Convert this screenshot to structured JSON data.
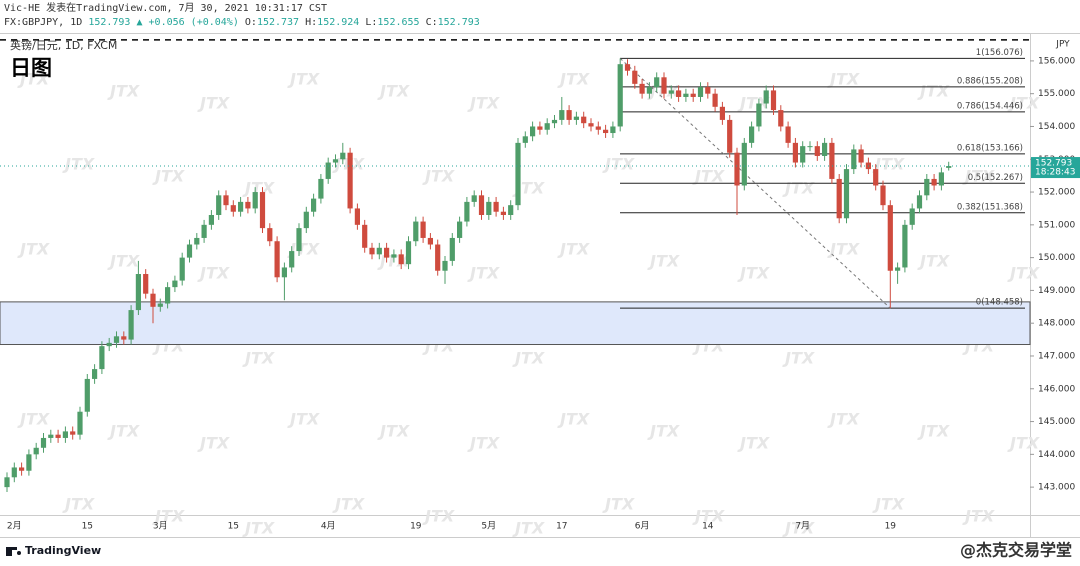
{
  "header": {
    "published": "Vic-HE 发表在TradingView.com, 7月 30, 2021 10:31:17 CST",
    "symbol": "FX:GBPJPY, 1D",
    "change": "▲ +0.056 (+0.04%)",
    "ohlc_keys": [
      "O:",
      "H:",
      "L:",
      "C:"
    ]
  },
  "footer": {
    "brand": "TradingView",
    "watermark_account": "@杰克交易学堂"
  },
  "chart_data": {
    "type": "candlestick",
    "title": "英镑/日元, 1D, FXCM",
    "subtitle": "日图",
    "currency": "JPY",
    "countdown": "18:28:43",
    "watermark": "JTX",
    "up_color": "#4f9d69",
    "down_color": "#cf4b3e",
    "categories": [
      null,
      "2月",
      null,
      null,
      null,
      null,
      null,
      null,
      null,
      null,
      null,
      "15",
      null,
      null,
      null,
      null,
      null,
      null,
      null,
      null,
      null,
      "3月",
      null,
      null,
      null,
      null,
      null,
      null,
      null,
      null,
      null,
      "15",
      null,
      null,
      null,
      null,
      null,
      null,
      null,
      null,
      null,
      null,
      null,
      null,
      "4月",
      null,
      null,
      null,
      null,
      null,
      null,
      null,
      null,
      null,
      null,
      null,
      "19",
      null,
      null,
      null,
      null,
      null,
      null,
      null,
      null,
      null,
      "5月",
      null,
      null,
      null,
      null,
      null,
      null,
      null,
      null,
      null,
      "17",
      null,
      null,
      null,
      null,
      null,
      null,
      null,
      null,
      null,
      null,
      "6月",
      null,
      null,
      null,
      null,
      null,
      null,
      null,
      null,
      "14",
      null,
      null,
      null,
      null,
      null,
      null,
      null,
      null,
      null,
      null,
      null,
      null,
      "7月",
      null,
      null,
      null,
      null,
      null,
      null,
      null,
      null,
      null,
      null,
      null,
      "19",
      null,
      null,
      null,
      null,
      null,
      null,
      null,
      null
    ],
    "open": [
      143.0,
      143.3,
      143.6,
      143.5,
      144.0,
      144.2,
      144.5,
      144.6,
      144.5,
      144.7,
      144.6,
      145.3,
      146.3,
      146.6,
      147.3,
      147.4,
      147.6,
      147.5,
      148.4,
      149.5,
      148.9,
      148.5,
      148.6,
      149.1,
      149.3,
      150.0,
      150.4,
      150.6,
      151.0,
      151.3,
      151.9,
      151.6,
      151.4,
      151.7,
      151.5,
      152.0,
      150.9,
      150.5,
      149.4,
      149.7,
      150.2,
      150.9,
      151.4,
      151.8,
      152.4,
      152.9,
      153.0,
      153.2,
      151.5,
      151.0,
      150.3,
      150.1,
      150.3,
      150.0,
      150.1,
      149.8,
      150.5,
      151.1,
      150.6,
      150.4,
      149.6,
      149.9,
      150.6,
      151.1,
      151.7,
      151.9,
      151.3,
      151.7,
      151.4,
      151.3,
      151.6,
      153.5,
      153.7,
      154.0,
      153.9,
      154.1,
      154.2,
      154.5,
      154.2,
      154.3,
      154.1,
      154.0,
      153.9,
      153.8,
      154.0,
      155.9,
      155.7,
      155.3,
      155.0,
      155.2,
      155.5,
      155.0,
      155.1,
      154.9,
      155.0,
      154.9,
      155.2,
      155.0,
      154.6,
      154.2,
      153.2,
      152.2,
      153.5,
      154.0,
      154.7,
      155.1,
      154.5,
      154.0,
      153.5,
      152.9,
      153.4,
      153.4,
      153.1,
      153.5,
      152.4,
      151.2,
      152.7,
      153.3,
      152.9,
      152.7,
      152.2,
      151.6,
      149.6,
      149.7,
      151.0,
      151.5,
      151.9,
      152.4,
      152.2,
      152.737
    ],
    "high": [
      143.45,
      143.75,
      143.75,
      144.15,
      144.35,
      144.65,
      144.75,
      144.75,
      144.85,
      144.85,
      145.45,
      146.45,
      146.75,
      147.45,
      147.55,
      147.75,
      147.75,
      148.55,
      149.9,
      149.65,
      149.05,
      148.75,
      149.25,
      149.45,
      150.15,
      150.55,
      150.75,
      151.15,
      151.45,
      152.05,
      152.05,
      151.75,
      151.85,
      151.85,
      152.15,
      152.15,
      151.05,
      150.65,
      149.85,
      150.35,
      151.05,
      151.55,
      151.95,
      152.55,
      153.05,
      153.15,
      153.5,
      153.35,
      151.65,
      151.15,
      150.45,
      150.45,
      150.45,
      150.25,
      150.25,
      150.65,
      151.25,
      151.25,
      150.75,
      150.55,
      150.05,
      150.75,
      151.25,
      151.85,
      152.05,
      152.05,
      151.85,
      151.85,
      151.55,
      151.75,
      153.65,
      153.85,
      154.15,
      154.15,
      154.25,
      154.35,
      154.9,
      154.65,
      154.45,
      154.45,
      154.25,
      154.15,
      154.05,
      154.15,
      156.076,
      156.05,
      155.85,
      155.45,
      155.35,
      155.65,
      155.65,
      155.25,
      155.25,
      155.15,
      155.15,
      155.35,
      155.35,
      155.15,
      154.75,
      154.35,
      153.35,
      153.65,
      154.15,
      154.85,
      155.25,
      155.25,
      154.65,
      154.15,
      153.65,
      153.55,
      153.55,
      153.55,
      153.65,
      153.65,
      152.55,
      152.85,
      153.45,
      153.45,
      153.05,
      152.85,
      152.35,
      151.75,
      149.85,
      151.15,
      151.65,
      152.05,
      152.55,
      152.55,
      152.75,
      152.924
    ],
    "low": [
      142.85,
      143.15,
      143.35,
      143.35,
      143.85,
      144.05,
      144.35,
      144.35,
      144.35,
      144.45,
      144.45,
      145.15,
      146.15,
      146.45,
      147.15,
      147.25,
      147.35,
      147.35,
      148.25,
      148.75,
      148.0,
      148.35,
      148.45,
      148.95,
      149.15,
      149.85,
      150.25,
      150.45,
      150.85,
      151.15,
      151.45,
      151.25,
      151.25,
      151.35,
      151.35,
      150.75,
      150.35,
      149.25,
      148.7,
      149.55,
      150.05,
      150.75,
      151.25,
      151.65,
      152.25,
      152.75,
      152.85,
      151.35,
      150.85,
      150.15,
      149.95,
      149.95,
      149.85,
      149.85,
      149.65,
      149.65,
      150.35,
      150.45,
      150.25,
      149.45,
      149.2,
      149.75,
      150.45,
      150.95,
      151.55,
      151.15,
      151.15,
      151.25,
      151.15,
      151.15,
      151.45,
      153.35,
      153.55,
      153.75,
      153.75,
      153.95,
      154.05,
      154.05,
      154.05,
      153.95,
      153.85,
      153.75,
      153.65,
      153.65,
      153.85,
      155.55,
      155.15,
      154.85,
      154.85,
      155.05,
      154.85,
      154.85,
      154.75,
      154.75,
      154.75,
      154.75,
      154.85,
      154.45,
      154.05,
      153.05,
      151.3,
      152.05,
      153.35,
      153.85,
      154.55,
      154.35,
      153.85,
      153.35,
      152.75,
      152.75,
      153.25,
      152.95,
      152.95,
      152.25,
      151.05,
      151.05,
      152.55,
      152.75,
      152.55,
      152.05,
      151.45,
      148.458,
      149.2,
      149.55,
      150.85,
      151.35,
      151.75,
      152.05,
      152.05,
      152.655
    ],
    "close": [
      143.3,
      143.6,
      143.5,
      144.0,
      144.2,
      144.5,
      144.6,
      144.5,
      144.7,
      144.6,
      145.3,
      146.3,
      146.6,
      147.3,
      147.4,
      147.6,
      147.5,
      148.4,
      149.5,
      148.9,
      148.5,
      148.6,
      149.1,
      149.3,
      150.0,
      150.4,
      150.6,
      151.0,
      151.3,
      151.9,
      151.6,
      151.4,
      151.7,
      151.5,
      152.0,
      150.9,
      150.5,
      149.4,
      149.7,
      150.2,
      150.9,
      151.4,
      151.8,
      152.4,
      152.9,
      153.0,
      153.2,
      151.5,
      151.0,
      150.3,
      150.1,
      150.3,
      150.0,
      150.1,
      149.8,
      150.5,
      151.1,
      150.6,
      150.4,
      149.6,
      149.9,
      150.6,
      151.1,
      151.7,
      151.9,
      151.3,
      151.7,
      151.4,
      151.3,
      151.6,
      153.5,
      153.7,
      154.0,
      153.9,
      154.1,
      154.2,
      154.5,
      154.2,
      154.3,
      154.1,
      154.0,
      153.9,
      153.8,
      154.0,
      155.9,
      155.7,
      155.3,
      155.0,
      155.2,
      155.5,
      155.0,
      155.1,
      154.9,
      155.0,
      154.9,
      155.2,
      155.0,
      154.6,
      154.2,
      153.2,
      152.2,
      153.5,
      154.0,
      154.7,
      155.1,
      154.5,
      154.0,
      153.5,
      152.9,
      153.4,
      153.4,
      153.1,
      153.5,
      152.4,
      151.2,
      152.7,
      153.3,
      152.9,
      152.7,
      152.2,
      151.6,
      149.6,
      149.7,
      151.0,
      151.5,
      151.9,
      152.4,
      152.2,
      152.6,
      152.793
    ],
    "ylim": [
      142.15,
      156.79
    ],
    "yticks": [
      {
        "value": 143,
        "label": "143.000"
      },
      {
        "value": 144,
        "label": "144.000"
      },
      {
        "value": 145,
        "label": "145.000"
      },
      {
        "value": 146,
        "label": "146.000"
      },
      {
        "value": 147,
        "label": "147.000"
      },
      {
        "value": 148,
        "label": "148.000"
      },
      {
        "value": 149,
        "label": "149.000"
      },
      {
        "value": 150,
        "label": "150.000"
      },
      {
        "value": 151,
        "label": "151.000"
      },
      {
        "value": 152,
        "label": "152.000"
      },
      {
        "value": 153,
        "label": "153.000"
      },
      {
        "value": 154,
        "label": "154.000"
      },
      {
        "value": 155,
        "label": "155.000"
      },
      {
        "value": 156,
        "label": "156.000"
      }
    ],
    "fib_levels": [
      {
        "value": 156.076,
        "label": "1(156.076)"
      },
      {
        "value": 155.208,
        "label": "0.886(155.208)"
      },
      {
        "value": 154.446,
        "label": "0.786(154.446)"
      },
      {
        "value": 153.166,
        "label": "0.618(153.166)"
      },
      {
        "value": 152.267,
        "label": "0.5(152.267)"
      },
      {
        "value": 151.368,
        "label": "0.382(151.368)"
      },
      {
        "value": 148.458,
        "label": "0(148.458)"
      }
    ],
    "zone": [
      147.35,
      148.65
    ],
    "dashed_level": 156.64
  }
}
